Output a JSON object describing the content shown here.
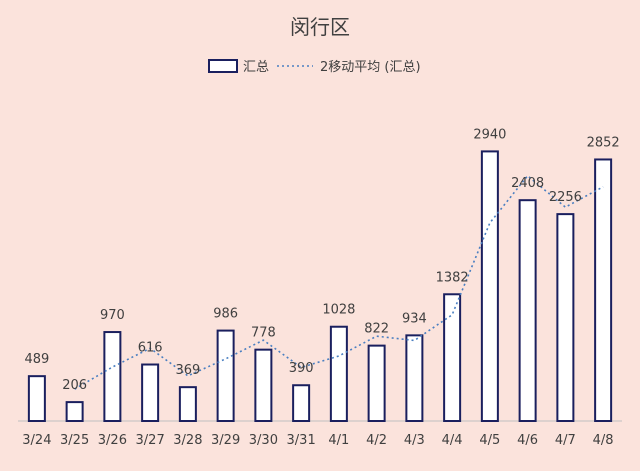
{
  "chart_data": {
    "type": "bar",
    "title": "闵行区",
    "categories": [
      "3/24",
      "3/25",
      "3/26",
      "3/27",
      "3/28",
      "3/29",
      "3/30",
      "3/31",
      "4/1",
      "4/2",
      "4/3",
      "4/4",
      "4/5",
      "4/6",
      "4/7",
      "4/8"
    ],
    "series": [
      {
        "name": "汇总",
        "type": "bar",
        "values": [
          489,
          206,
          970,
          616,
          369,
          986,
          778,
          390,
          1028,
          822,
          934,
          1382,
          2940,
          2408,
          2256,
          2852
        ]
      },
      {
        "name": "2移动平均 (汇总)",
        "type": "line",
        "style": "dotted",
        "values": [
          null,
          347.5,
          588,
          793,
          492.5,
          677.5,
          882,
          584,
          709,
          925,
          878,
          1158,
          2161,
          2674,
          2332,
          2554
        ]
      }
    ],
    "ylim": [
      0,
      3200
    ],
    "grid": false,
    "legend_position": "top-center",
    "data_labels": true,
    "colors": {
      "background": "#fbe3dc",
      "bar_fill": "#ffffff",
      "bar_stroke": "#1a1f5e",
      "moving_average": "#4a7fc1",
      "axis": "#bfbfbf",
      "text": "#404040"
    }
  }
}
